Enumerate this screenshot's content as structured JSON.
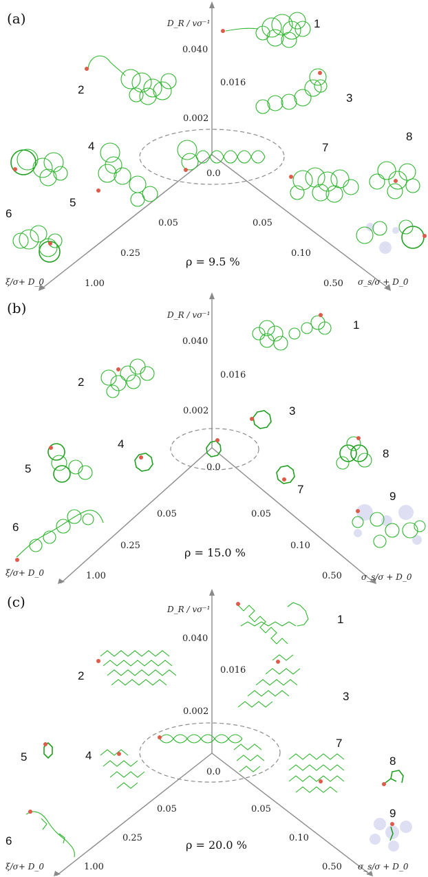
{
  "panels": [
    {
      "label": "(a)",
      "rho": "ρ = 9.5 %",
      "axis_z_label": "D_R / vσ⁻¹",
      "axis_left_label": "ξ/σ+ D_0",
      "axis_right_label": "σ_s/σ + D_0",
      "z_ticks": [
        "0.040",
        "0.016",
        "0.002"
      ],
      "origin_tick": "0.0",
      "left_ticks": [
        "0.05",
        "0.25",
        "1.00"
      ],
      "right_ticks": [
        "0.05",
        "0.10",
        "0.50"
      ],
      "clusters": [
        "1",
        "2",
        "3",
        "4",
        "5",
        "6",
        "7",
        "8"
      ]
    },
    {
      "label": "(b)",
      "rho": "ρ = 15.0 %",
      "axis_z_label": "D_R / vσ⁻¹",
      "axis_left_label": "ξ/σ+ D_0",
      "axis_right_label": "σ_s/σ + D_0",
      "z_ticks": [
        "0.040",
        "0.016",
        "0.002"
      ],
      "origin_tick": "0.0",
      "left_ticks": [
        "0.05",
        "0.25",
        "1.00"
      ],
      "right_ticks": [
        "0.05",
        "0.10",
        "0.50"
      ],
      "clusters": [
        "1",
        "2",
        "3",
        "4",
        "5",
        "6",
        "7",
        "8",
        "9"
      ]
    },
    {
      "label": "(c)",
      "rho": "ρ = 20.0 %",
      "axis_z_label": "D_R / vσ⁻¹",
      "axis_left_label": "ξ/σ+ D_0",
      "axis_right_label": "σ_s/σ + D_0",
      "z_ticks": [
        "0.040",
        "0.016",
        "0.002"
      ],
      "origin_tick": "0.0",
      "left_ticks": [
        "0.05",
        "0.25",
        "1.00"
      ],
      "right_ticks": [
        "0.05",
        "0.10",
        "0.50"
      ],
      "clusters": [
        "1",
        "2",
        "3",
        "4",
        "5",
        "6",
        "7",
        "8",
        "9"
      ]
    }
  ],
  "colors": {
    "trajectory": "#2db52d",
    "start_point": "#e05a4a",
    "obstacle": "#d4d4f0",
    "axis": "#8a8a8a"
  }
}
